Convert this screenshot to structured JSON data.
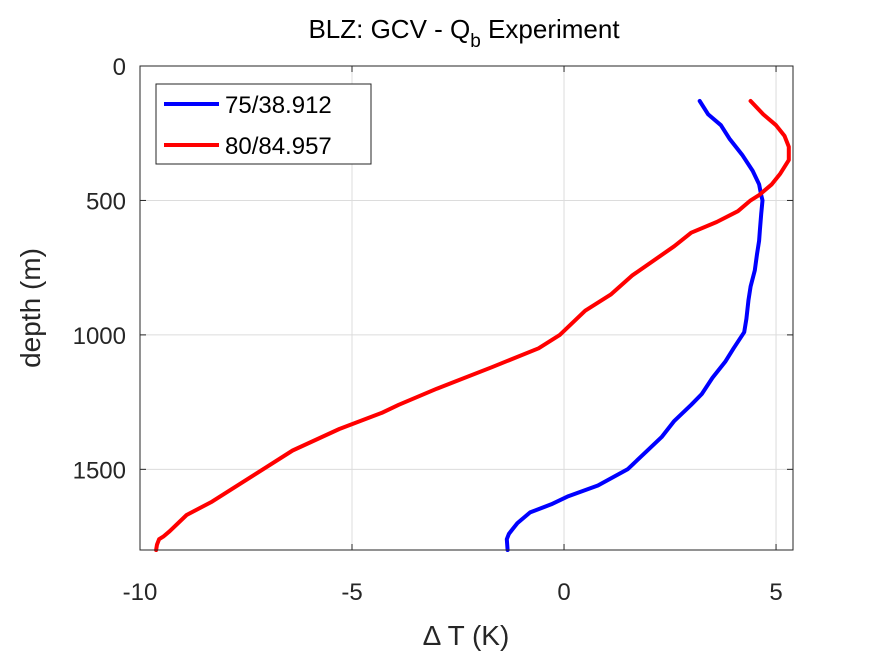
{
  "chart_data": {
    "type": "line",
    "title": {
      "main": "BLZ: GCV - Q",
      "subscript": "b",
      "suffix": " Experiment"
    },
    "xlabel": "Δ T (K)",
    "ylabel": "depth (m)",
    "xlim": [
      -10,
      5.4
    ],
    "ylim": [
      0,
      1800
    ],
    "y_reversed": true,
    "xticks": [
      -10,
      -5,
      0,
      5
    ],
    "yticks": [
      0,
      500,
      1000,
      1500
    ],
    "xtick_labels": [
      "-10",
      "-5",
      "0",
      "5"
    ],
    "ytick_labels": [
      "0",
      "500",
      "1000",
      "1500"
    ],
    "grid": true,
    "legend_position": "top-left",
    "series": [
      {
        "name": "75/38.912",
        "color": "#0000ff",
        "x": [
          3.2,
          3.4,
          3.7,
          3.9,
          4.2,
          4.45,
          4.6,
          4.65,
          4.68,
          4.65,
          4.62,
          4.6,
          4.55,
          4.5,
          4.4,
          4.35,
          4.3,
          4.25,
          4.0,
          3.8,
          3.5,
          3.25,
          3.0,
          2.6,
          2.3,
          1.9,
          1.5,
          0.8,
          0.1,
          -0.3,
          -0.8,
          -1.1,
          -1.2,
          -1.3,
          -1.35,
          -1.33
        ],
        "y": [
          130,
          180,
          220,
          270,
          330,
          390,
          440,
          480,
          500,
          550,
          610,
          650,
          700,
          760,
          820,
          870,
          940,
          990,
          1050,
          1100,
          1160,
          1220,
          1260,
          1320,
          1380,
          1440,
          1500,
          1560,
          1600,
          1630,
          1660,
          1700,
          1720,
          1740,
          1760,
          1800
        ]
      },
      {
        "name": "80/84.957",
        "color": "#ff0000",
        "x": [
          4.4,
          4.7,
          5.0,
          5.2,
          5.3,
          5.3,
          5.1,
          4.9,
          4.6,
          4.4,
          4.1,
          3.6,
          3.0,
          2.6,
          1.6,
          1.1,
          0.5,
          -0.1,
          -0.6,
          -1.7,
          -3.0,
          -3.9,
          -4.3,
          -5.3,
          -6.4,
          -7.1,
          -8.3,
          -8.9,
          -9.3,
          -9.45,
          -9.55,
          -9.6,
          -9.62
        ],
        "y": [
          130,
          180,
          220,
          260,
          300,
          350,
          400,
          440,
          480,
          500,
          540,
          580,
          620,
          670,
          780,
          850,
          910,
          1000,
          1050,
          1120,
          1200,
          1260,
          1290,
          1350,
          1430,
          1500,
          1620,
          1670,
          1730,
          1750,
          1760,
          1780,
          1800
        ]
      }
    ]
  }
}
